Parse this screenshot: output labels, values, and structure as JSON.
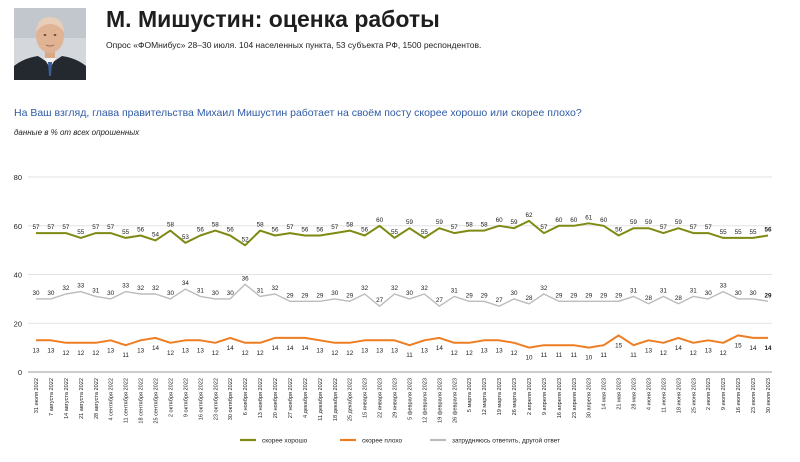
{
  "header": {
    "title": "М. Мишустин: оценка работы",
    "subtitle": "Опрос «ФОМнибус» 28–30 июля. 104 населенных пункта, 53 субъекта РФ, 1500 респондентов."
  },
  "question": "На Ваш взгляд, глава правительства Михаил Мишустин работает на своём посту скорее хорошо или скорее плохо?",
  "note": "данные в % от всех опрошенных",
  "colors": {
    "good": "#7f8a14",
    "bad": "#ee7d22",
    "hard": "#bcbcbc",
    "grid": "#e3e3e3",
    "axis": "#9a9a9a"
  },
  "chart_data": {
    "type": "line",
    "ylim": [
      0,
      80
    ],
    "yticks": [
      0,
      20,
      40,
      60,
      80
    ],
    "grid": "horizontal",
    "legend_position": "bottom",
    "categories": [
      "31 июля 2022",
      "7 августа 2022",
      "14 августа 2022",
      "21 августа 2022",
      "28 августа 2022",
      "4 сентября 2022",
      "11 сентября 2022",
      "18 сентября 2022",
      "25 сентября 2022",
      "2 октября 2022",
      "9 октября 2022",
      "16 октября 2022",
      "23 октября 2022",
      "30 октября 2022",
      "6 ноября 2022",
      "13 ноября 2022",
      "20 ноября 2022",
      "27 ноября 2022",
      "4 декабря 2022",
      "11 декабря 2022",
      "18 декабря 2022",
      "25 декабря 2022",
      "15 января 2023",
      "22 января 2023",
      "29 января 2023",
      "5 февраля 2023",
      "12 февраля 2023",
      "19 февраля 2023",
      "26 февраля 2023",
      "5 марта 2023",
      "12 марта 2023",
      "19 марта 2023",
      "26 марта 2023",
      "2 апреля 2023",
      "9 апреля 2023",
      "16 апреля 2023",
      "23 апреля 2023",
      "30 апреля 2023",
      "14 мая 2023",
      "21 мая 2023",
      "28 мая 2023",
      "4 июня 2023",
      "11 июня 2023",
      "18 июня 2023",
      "25 июня 2023",
      "2 июля 2023",
      "9 июля 2023",
      "16 июля 2023",
      "23 июля 2023",
      "30 июля 2023"
    ],
    "series": [
      {
        "name": "скорее хорошо",
        "color": "#7f8a14",
        "values": [
          57,
          57,
          57,
          55,
          57,
          57,
          55,
          56,
          54,
          58,
          53,
          56,
          58,
          56,
          52,
          58,
          56,
          57,
          56,
          56,
          57,
          58,
          56,
          60,
          55,
          59,
          55,
          59,
          57,
          58,
          58,
          60,
          59,
          62,
          57,
          60,
          60,
          61,
          60,
          56,
          59,
          59,
          57,
          59,
          57,
          57,
          55,
          55,
          55,
          56
        ]
      },
      {
        "name": "скорее плохо",
        "color": "#ee7d22",
        "values": [
          13,
          13,
          12,
          12,
          12,
          13,
          11,
          13,
          14,
          12,
          13,
          13,
          12,
          14,
          12,
          12,
          14,
          14,
          14,
          13,
          12,
          12,
          13,
          13,
          13,
          11,
          13,
          14,
          12,
          12,
          13,
          13,
          12,
          10,
          11,
          11,
          11,
          10,
          11,
          15,
          11,
          13,
          12,
          14,
          12,
          13,
          12,
          15,
          14,
          14
        ]
      },
      {
        "name": "затрудняюсь ответить, другой ответ",
        "color": "#bcbcbc",
        "values": [
          30,
          30,
          32,
          33,
          31,
          30,
          33,
          32,
          32,
          30,
          34,
          31,
          30,
          30,
          36,
          31,
          32,
          29,
          29,
          29,
          30,
          29,
          32,
          27,
          32,
          30,
          32,
          27,
          31,
          29,
          29,
          27,
          30,
          28,
          32,
          29,
          29,
          29,
          29,
          29,
          31,
          28,
          31,
          28,
          31,
          30,
          33,
          30,
          30,
          29
        ]
      }
    ]
  }
}
